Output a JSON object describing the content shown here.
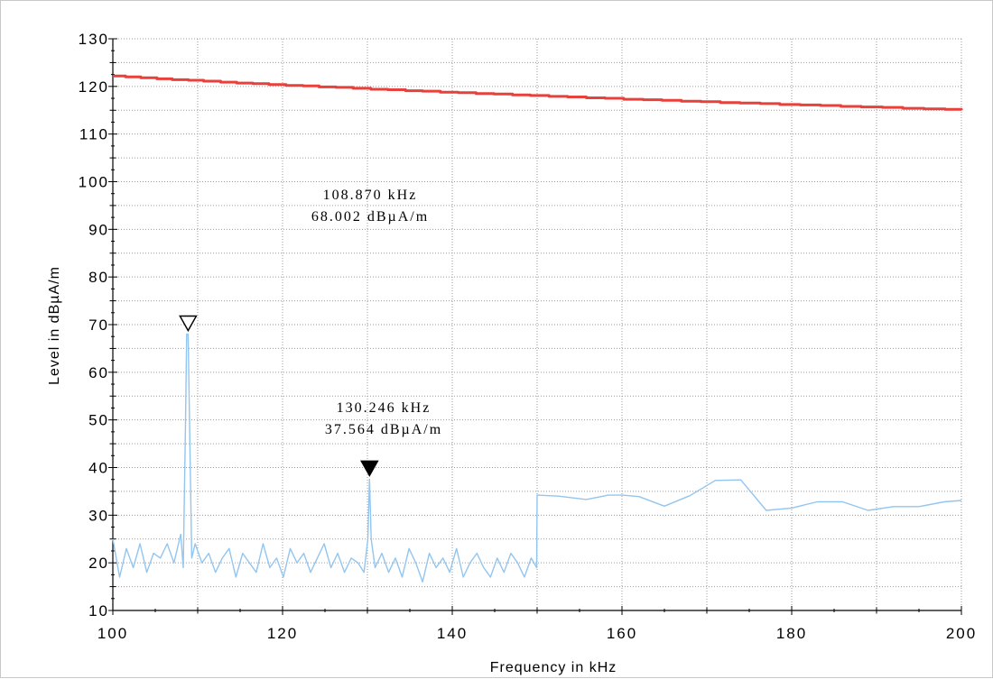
{
  "chart_data": {
    "type": "line",
    "xlabel": "Frequency in kHz",
    "ylabel": "Level in dBµA/m",
    "xlim": [
      100,
      200
    ],
    "ylim": [
      10,
      130
    ],
    "x_ticks": [
      "100",
      "120",
      "140",
      "160",
      "180",
      "200"
    ],
    "y_ticks": [
      "10",
      "20",
      "30",
      "40",
      "50",
      "60",
      "70",
      "80",
      "90",
      "100",
      "110",
      "120",
      "130"
    ],
    "grid": true,
    "series": [
      {
        "role": "limit",
        "color": "#e8413c",
        "x": [
          100,
          101.5,
          103.3,
          105.2,
          107,
          108.9,
          110.7,
          112.7,
          114.6,
          116.5,
          118.4,
          120.4,
          122.4,
          124.3,
          126.3,
          128.3,
          130.4,
          132.4,
          134.5,
          136.5,
          138.6,
          140.7,
          142.8,
          144.9,
          147.1,
          149.2,
          151.4,
          153.6,
          155.8,
          158,
          160.2,
          162.5,
          164.7,
          167,
          169.3,
          171.6,
          173.9,
          176.3,
          178.6,
          181,
          183.4,
          185.8,
          188.2,
          190.7,
          193.1,
          195.6,
          198.1,
          200
        ],
        "values": [
          122.2,
          122,
          121.8,
          121.6,
          121.4,
          121.3,
          121.1,
          120.9,
          120.7,
          120.6,
          120.4,
          120.2,
          120.1,
          119.9,
          119.8,
          119.6,
          119.4,
          119.3,
          119.1,
          119,
          118.8,
          118.7,
          118.5,
          118.4,
          118.2,
          118.1,
          117.9,
          117.8,
          117.6,
          117.5,
          117.3,
          117.2,
          117.1,
          116.9,
          116.8,
          116.6,
          116.5,
          116.4,
          116.2,
          116.1,
          116,
          115.8,
          115.7,
          115.6,
          115.4,
          115.3,
          115.2,
          115
        ]
      },
      {
        "role": "measurement",
        "color": "#92c5f0",
        "x": [
          100,
          100.8,
          101.6,
          102.4,
          103.2,
          104,
          104.8,
          105.6,
          106.4,
          107.2,
          108,
          108.3,
          108.55,
          108.7,
          108.87,
          109.05,
          109.3,
          109.7,
          110.5,
          111.3,
          112.1,
          112.9,
          113.7,
          114.5,
          115.3,
          116.1,
          116.9,
          117.7,
          118.5,
          119.3,
          120.1,
          120.9,
          121.7,
          122.5,
          123.3,
          124.1,
          124.9,
          125.7,
          126.5,
          127.3,
          128.1,
          128.9,
          129.6,
          130.05,
          130.246,
          130.45,
          130.9,
          131.7,
          132.5,
          133.3,
          134.1,
          134.9,
          135.7,
          136.5,
          137.3,
          138.1,
          138.9,
          139.7,
          140.5,
          141.3,
          142.1,
          142.9,
          143.7,
          144.5,
          145.3,
          146.1,
          146.9,
          147.7,
          148.5,
          149.3,
          149.95,
          150,
          152.5,
          155.8,
          158.4,
          160,
          162,
          165,
          168,
          171,
          174,
          177,
          180,
          183,
          186,
          189,
          192,
          195,
          198,
          200
        ],
        "values": [
          25,
          17,
          23,
          19,
          24,
          18,
          22,
          21,
          24,
          20,
          26,
          19,
          48,
          68,
          68,
          48,
          21,
          24,
          20,
          22,
          18,
          21,
          23,
          17,
          22,
          20,
          18,
          24,
          19,
          21,
          17,
          23,
          20,
          22,
          18,
          21,
          24,
          19,
          22,
          18,
          21,
          20,
          18,
          25,
          37.564,
          25,
          19,
          22,
          18,
          21,
          17,
          23,
          20,
          16,
          22,
          19,
          21,
          18,
          23,
          17,
          20,
          22,
          19,
          17,
          21,
          18,
          22,
          20,
          17,
          21,
          19,
          34.2,
          34,
          33.3,
          34.2,
          34.2,
          33.9,
          31.9,
          34.1,
          37.3,
          37.4,
          31,
          31.5,
          32.8,
          32.8,
          31,
          31.8,
          31.8,
          32.8,
          33.1
        ]
      }
    ],
    "markers": [
      {
        "x": 108.87,
        "y": 68.002,
        "style": "open-triangle",
        "freq_text": "108.870 kHz",
        "level_text": "68.002 dBµA/m"
      },
      {
        "x": 130.246,
        "y": 37.564,
        "style": "filled-triangle",
        "freq_text": "130.246 kHz",
        "level_text": "37.564 dBµA/m"
      }
    ]
  }
}
